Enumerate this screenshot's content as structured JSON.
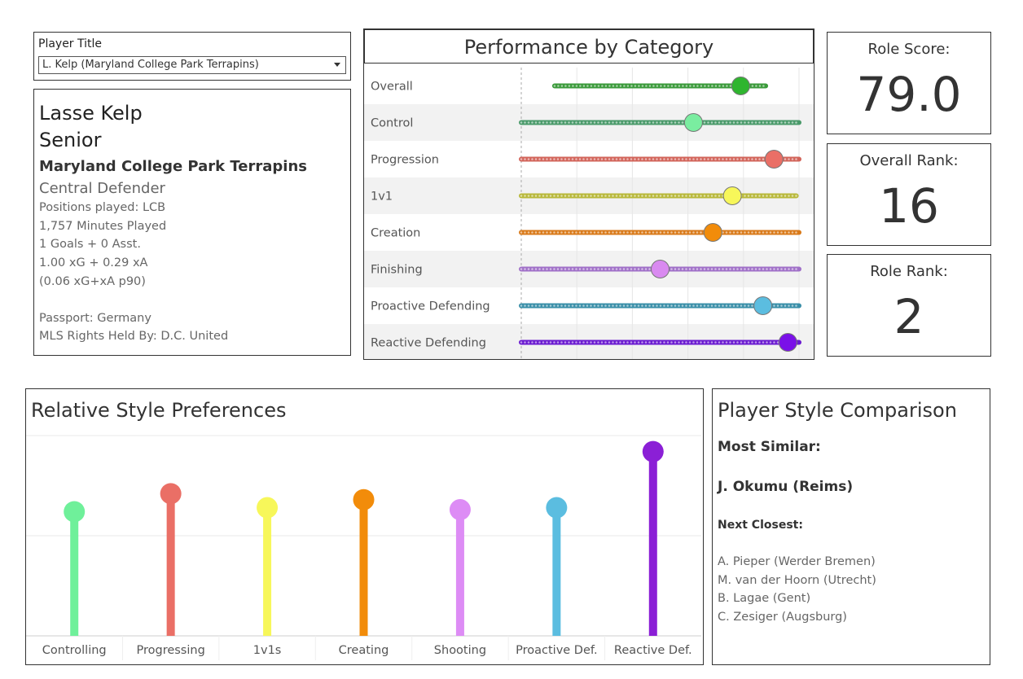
{
  "selector": {
    "label": "Player Title",
    "value": "L. Kelp (Maryland College Park Terrapins)"
  },
  "player": {
    "name": "Lasse Kelp",
    "year": "Senior",
    "club": "Maryland College Park Terrapins",
    "role": "Central Defender",
    "positions": "Positions played: LCB",
    "minutes": "1,757 Minutes Played",
    "goals": "1 Goals + 0 Asst.",
    "xg": "1.00 xG + 0.29 xA",
    "xg_p90": "(0.06 xG+xA p90)",
    "passport": "Passport: Germany",
    "mls_rights": "MLS Rights Held By: D.C. United"
  },
  "kpis": [
    {
      "label": "Role Score:",
      "value": "79.0"
    },
    {
      "label": "Overall Rank:",
      "value": "16"
    },
    {
      "label": "Role Rank:",
      "value": "2"
    }
  ],
  "chart_data": [
    {
      "type": "scatter",
      "title": "Performance by Category",
      "categories": [
        {
          "label": "Overall",
          "color": "#3a9a3a",
          "range": [
            0.12,
            0.88
          ],
          "player": 0.79
        },
        {
          "label": "Control",
          "color": "#4a9a6a",
          "range": [
            0.0,
            1.0
          ],
          "player": 0.62
        },
        {
          "label": "Progression",
          "color": "#d2645a",
          "range": [
            0.0,
            1.0
          ],
          "player": 0.91
        },
        {
          "label": "1v1",
          "color": "#b8b83a",
          "range": [
            0.0,
            0.99
          ],
          "player": 0.76
        },
        {
          "label": "Creation",
          "color": "#d97a1a",
          "range": [
            0.0,
            1.0
          ],
          "player": 0.69
        },
        {
          "label": "Finishing",
          "color": "#a070c8",
          "range": [
            0.0,
            1.0
          ],
          "player": 0.5
        },
        {
          "label": "Proactive Defending",
          "color": "#3a8fa8",
          "range": [
            0.0,
            1.0
          ],
          "player": 0.87
        },
        {
          "label": "Reactive Defending",
          "color": "#6a1ad0",
          "range": [
            0.0,
            1.0
          ],
          "player": 0.96
        }
      ],
      "player_colors": [
        "#2fb52f",
        "#7aeda0",
        "#ea6f66",
        "#f7f75a",
        "#f28c0a",
        "#d98af0",
        "#5bbde0",
        "#7a10e8"
      ]
    },
    {
      "type": "bar",
      "title": "Relative Style Preferences",
      "categories": [
        "Controlling",
        "Progressing",
        "1v1s",
        "Creating",
        "Shooting",
        "Proactive Def.",
        "Reactive Def."
      ],
      "values": [
        0.62,
        0.71,
        0.64,
        0.68,
        0.63,
        0.64,
        0.92
      ],
      "colors": [
        "#6ff09a",
        "#ea6f66",
        "#f7f75a",
        "#f28c0a",
        "#dd8cf5",
        "#5bbde0",
        "#8b1fd6"
      ],
      "ylim": [
        0,
        1
      ]
    }
  ],
  "comparison": {
    "title": "Player Style Comparison",
    "most_similar_label": "Most Similar:",
    "most_similar": "J. Okumu (Reims)",
    "next_closest_label": "Next Closest:",
    "next_closest": [
      "A. Pieper (Werder Bremen)",
      "M. van der Hoorn (Utrecht)",
      "B. Lagae (Gent)",
      "C. Zesiger (Augsburg)"
    ]
  }
}
